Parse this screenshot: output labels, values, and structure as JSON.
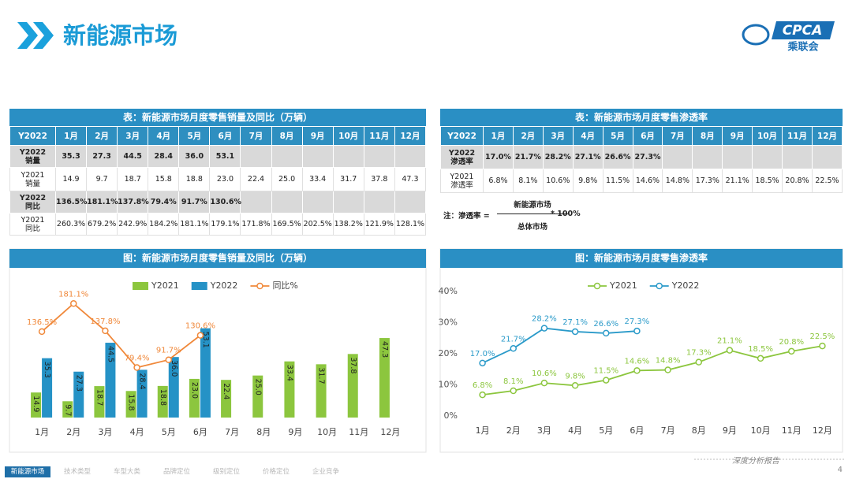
{
  "header": {
    "title": "新能源市场",
    "logo": {
      "text": "CPCA",
      "subtext": "乘联会"
    }
  },
  "tables": [
    {
      "title": "表：新能源市场月度零售销量及同比（万辆）",
      "columns": [
        "Y2022",
        "1月",
        "2月",
        "3月",
        "4月",
        "5月",
        "6月",
        "7月",
        "8月",
        "9月",
        "10月",
        "11月",
        "12月"
      ],
      "rows": [
        {
          "label": [
            "Y2022",
            "销量"
          ],
          "highlight": true,
          "cells": [
            "35.3",
            "27.3",
            "44.5",
            "28.4",
            "36.0",
            "53.1"
          ]
        },
        {
          "label": [
            "Y2021",
            "销量"
          ],
          "highlight": false,
          "cells": [
            "14.9",
            "9.7",
            "18.7",
            "15.8",
            "18.8",
            "23.0",
            "22.4",
            "25.0",
            "33.4",
            "31.7",
            "37.8",
            "47.3"
          ]
        },
        {
          "label": [
            "Y2022",
            "同比"
          ],
          "highlight": true,
          "cells": [
            "136.5%",
            "181.1%",
            "137.8%",
            "79.4%",
            "91.7%",
            "130.6%"
          ]
        },
        {
          "label": [
            "Y2021",
            "同比"
          ],
          "highlight": false,
          "cells": [
            "260.3%",
            "679.2%",
            "242.9%",
            "184.2%",
            "181.1%",
            "179.1%",
            "171.8%",
            "169.5%",
            "202.5%",
            "138.2%",
            "121.9%",
            "128.1%"
          ]
        }
      ]
    },
    {
      "title": "表：新能源市场月度零售渗透率",
      "columns": [
        "Y2022",
        "1月",
        "2月",
        "3月",
        "4月",
        "5月",
        "6月",
        "7月",
        "8月",
        "9月",
        "10月",
        "11月",
        "12月"
      ],
      "rows": [
        {
          "label": [
            "Y2022",
            "渗透率"
          ],
          "highlight": true,
          "cells": [
            "17.0%",
            "21.7%",
            "28.2%",
            "27.1%",
            "26.6%",
            "27.3%"
          ]
        },
        {
          "label": [
            "Y2021",
            "渗透率"
          ],
          "highlight": false,
          "cells": [
            "6.8%",
            "8.1%",
            "10.6%",
            "9.8%",
            "11.5%",
            "14.6%",
            "14.8%",
            "17.3%",
            "21.1%",
            "18.5%",
            "20.8%",
            "22.5%"
          ]
        }
      ]
    }
  ],
  "note": {
    "prefix": "注：渗透率 =",
    "numerator": "新能源市场",
    "denominator": "总体市场",
    "suffix": "* 100%"
  },
  "chart_data": [
    {
      "type": "bar",
      "title": "图：新能源市场月度零售销量及同比（万辆）",
      "categories": [
        "1月",
        "2月",
        "3月",
        "4月",
        "5月",
        "6月",
        "7月",
        "8月",
        "9月",
        "10月",
        "11月",
        "12月"
      ],
      "ylim": [
        0,
        82
      ],
      "y2lim": [
        0,
        219
      ],
      "legend": "top",
      "series": [
        {
          "name": "Y2021",
          "color": "#8cc63e",
          "values": [
            14.9,
            9.7,
            18.7,
            15.8,
            18.8,
            23.0,
            22.4,
            25.0,
            33.4,
            31.7,
            37.8,
            47.3
          ],
          "value_labels": [
            "14.9",
            "9.7",
            "18.7",
            "15.8",
            "18.8",
            "23.0",
            "22.4",
            "25.0",
            "33.4",
            "31.7",
            "37.8",
            "47.3"
          ]
        },
        {
          "name": "Y2022",
          "color": "#2592c6",
          "values": [
            35.3,
            27.3,
            44.5,
            28.4,
            36.0,
            53.1,
            null,
            null,
            null,
            null,
            null,
            null
          ],
          "value_labels": [
            "35.3",
            "27.3",
            "44.5",
            "28.4",
            "36.0",
            "53.1",
            null,
            null,
            null,
            null,
            null,
            null
          ]
        },
        {
          "name": "同比%",
          "type": "line",
          "axis": "y2",
          "color": "#f0883a",
          "values": [
            136.5,
            181.1,
            137.8,
            79.4,
            91.7,
            130.6,
            null,
            null,
            null,
            null,
            null,
            null
          ],
          "value_labels": [
            "136.5%",
            "181.1%",
            "137.8%",
            "79.4%",
            "91.7%",
            "130.6%",
            null,
            null,
            null,
            null,
            null,
            null
          ]
        }
      ]
    },
    {
      "type": "line",
      "title": "图：新能源市场月度零售渗透率",
      "categories": [
        "1月",
        "2月",
        "3月",
        "4月",
        "5月",
        "6月",
        "7月",
        "8月",
        "9月",
        "10月",
        "11月",
        "12月"
      ],
      "ylim": [
        0,
        40
      ],
      "yticks": [
        {
          "value": 0,
          "label": "0%"
        },
        {
          "value": 10,
          "label": "10%"
        },
        {
          "value": 20,
          "label": "20%"
        },
        {
          "value": 30,
          "label": "30%"
        },
        {
          "value": 40,
          "label": "40%"
        }
      ],
      "grid": false,
      "legend": "top",
      "series": [
        {
          "name": "Y2021",
          "color": "#8cc63e",
          "values": [
            6.8,
            8.1,
            10.6,
            9.8,
            11.5,
            14.6,
            14.8,
            17.3,
            21.1,
            18.5,
            20.8,
            22.5
          ],
          "value_labels": [
            "6.8%",
            "8.1%",
            "10.6%",
            "9.8%",
            "11.5%",
            "14.6%",
            "14.8%",
            "17.3%",
            "21.1%",
            "18.5%",
            "20.8%",
            "22.5%"
          ]
        },
        {
          "name": "Y2022",
          "color": "#2a9ac9",
          "values": [
            17.0,
            21.7,
            28.2,
            27.1,
            26.6,
            27.3,
            null,
            null,
            null,
            null,
            null,
            null
          ],
          "value_labels": [
            "17.0%",
            "21.7%",
            "28.2%",
            "27.1%",
            "26.6%",
            "27.3%",
            null,
            null,
            null,
            null,
            null,
            null
          ]
        }
      ]
    }
  ],
  "footer": {
    "tabs": [
      "新能源市场",
      "技术类型",
      "车型大类",
      "品牌定位",
      "级别定位",
      "价格定位",
      "企业竞争"
    ],
    "active": 0,
    "report": "深度分析报告",
    "page": "4"
  }
}
